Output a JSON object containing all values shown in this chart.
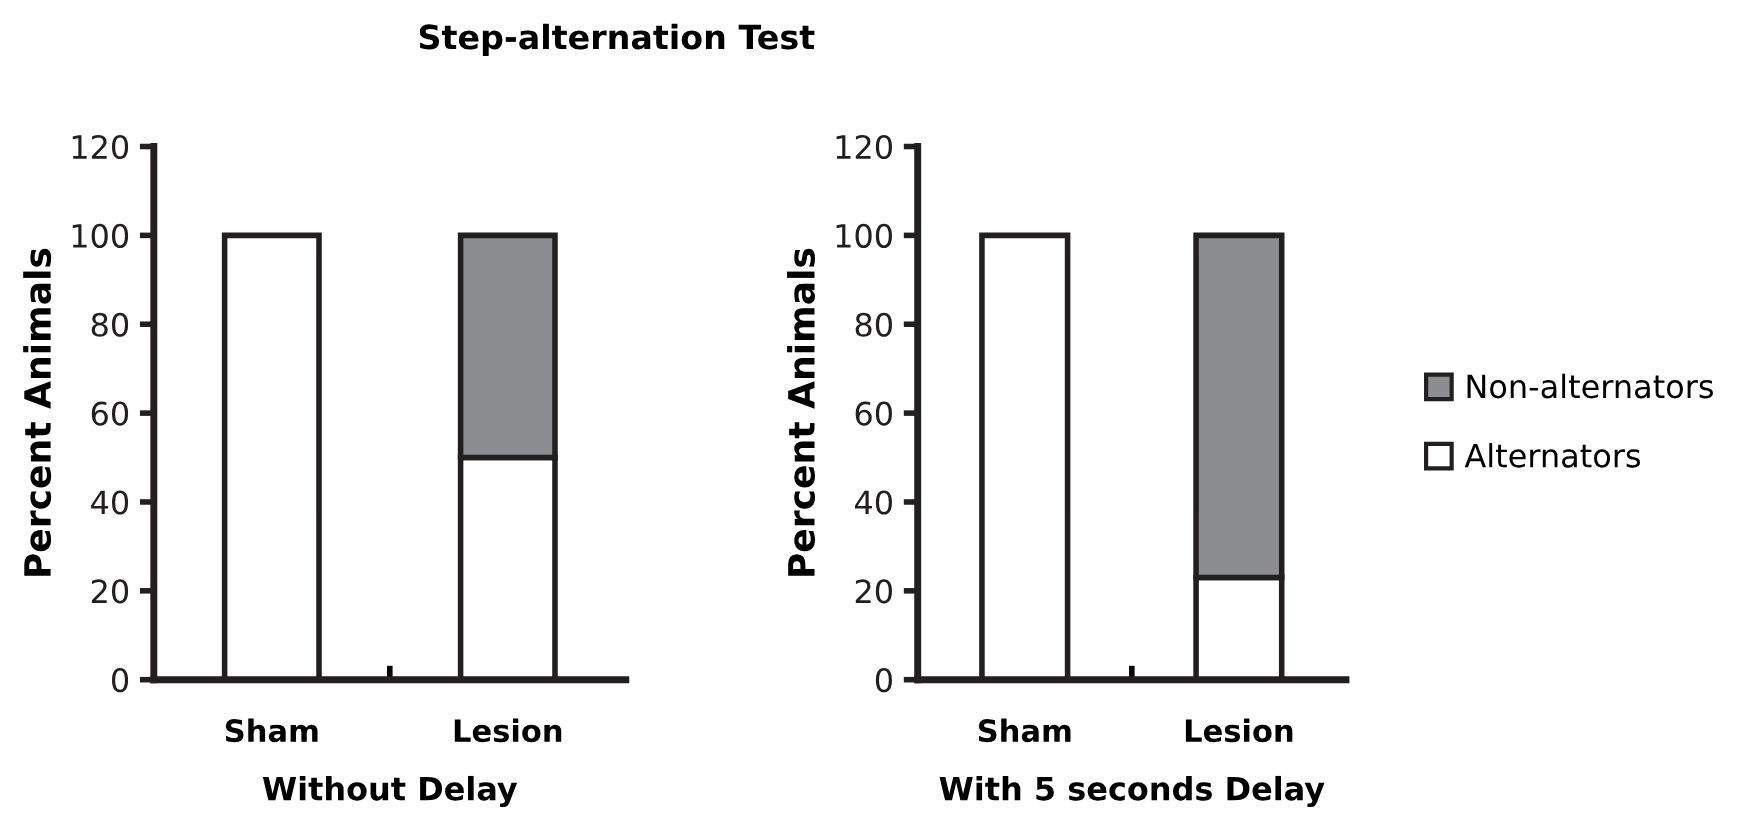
{
  "chart_data": [
    {
      "type": "bar",
      "title": "Step-alternation Test",
      "xlabel": "Without Delay",
      "ylabel": "Percent Animals",
      "categories": [
        "Sham",
        "Lesion"
      ],
      "stacked": true,
      "series": [
        {
          "color": "#ffffff",
          "values": [
            100,
            50
          ]
        },
        {
          "color": "#8c8d90",
          "values": [
            0,
            50
          ]
        }
      ],
      "ylim": [
        0,
        120
      ],
      "yticks": [
        0,
        20,
        40,
        60,
        80,
        100,
        120
      ],
      "grid": false
    },
    {
      "type": "bar",
      "xlabel": "With 5 seconds Delay",
      "ylabel": "Percent Animals",
      "categories": [
        "Sham",
        "Lesion"
      ],
      "stacked": true,
      "series": [
        {
          "name": "Alternators",
          "color": "#ffffff",
          "values": [
            100,
            23
          ]
        },
        {
          "name": "Non-alternators",
          "color": "#8c8d90",
          "values": [
            0,
            77
          ]
        }
      ],
      "ylim": [
        0,
        120
      ],
      "yticks": [
        0,
        20,
        40,
        60,
        80,
        100,
        120
      ],
      "grid": false,
      "legend": "right"
    }
  ]
}
